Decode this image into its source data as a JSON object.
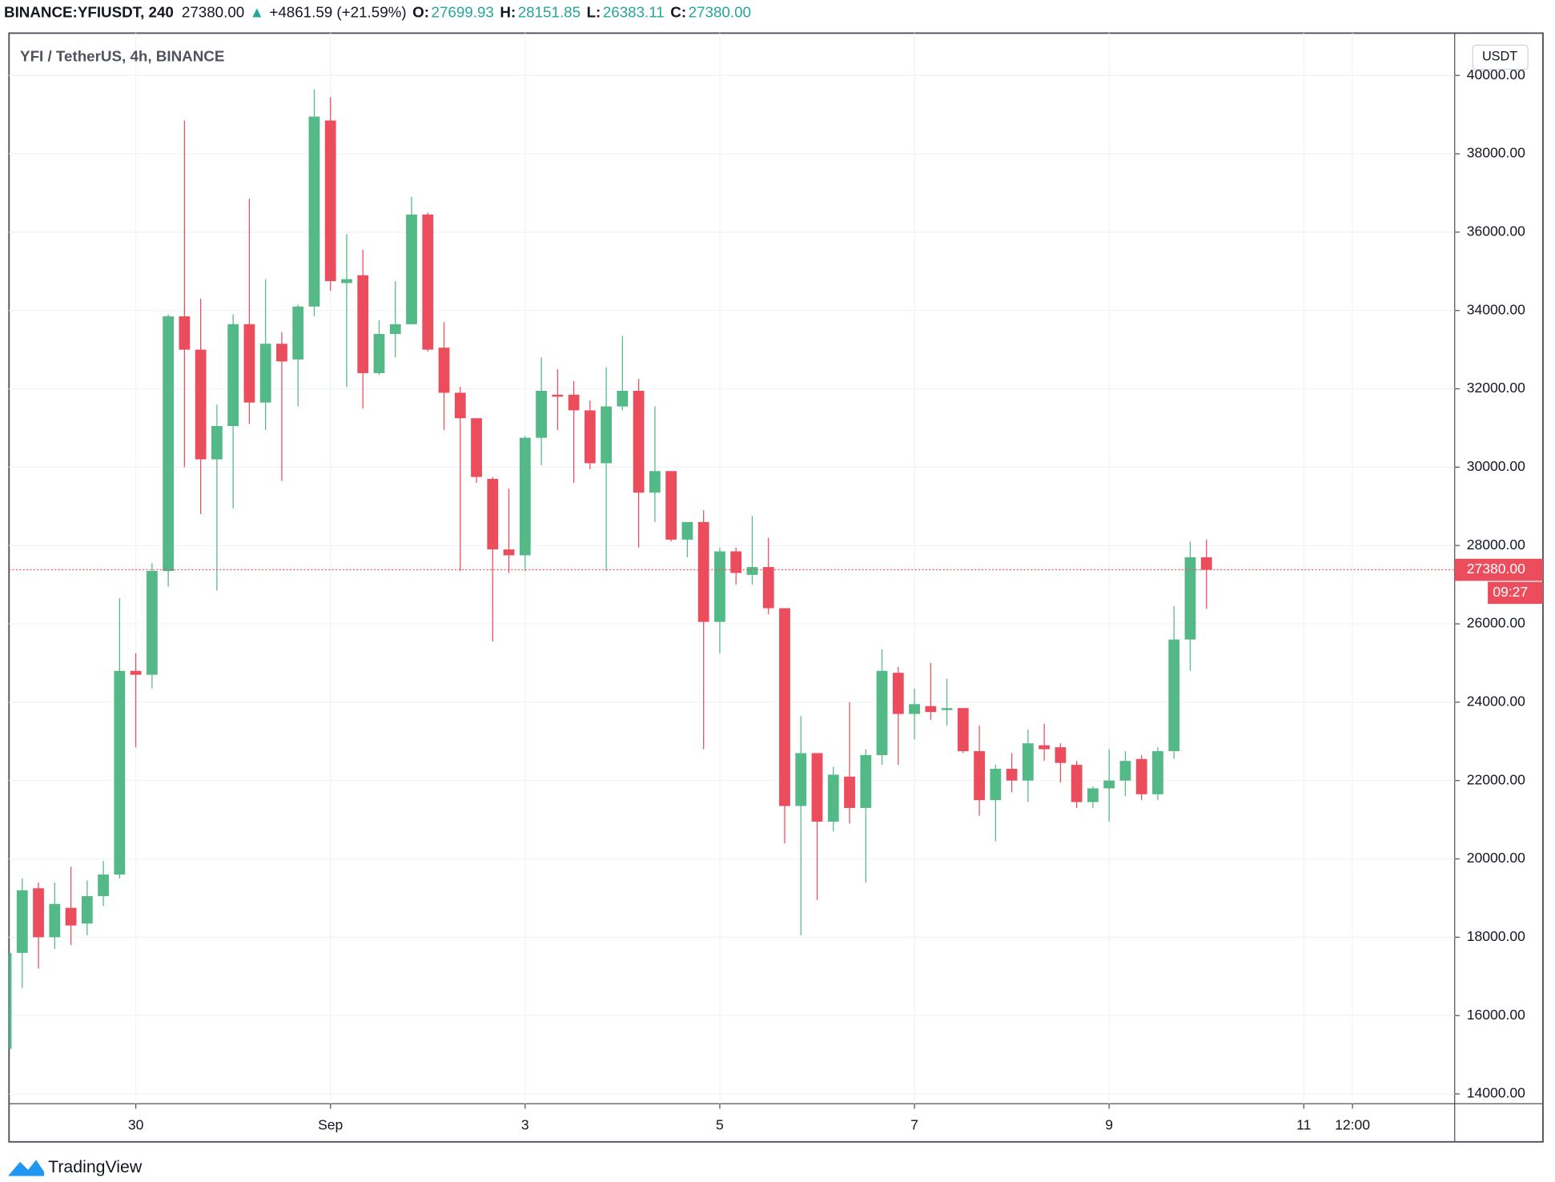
{
  "header": {
    "symbol": "BINANCE:YFIUSDT, 240",
    "last": "27380.00",
    "arrow": "▲",
    "change": "+4861.59 (+21.59%)",
    "ohlc": [
      {
        "label": "O:",
        "value": "27699.93"
      },
      {
        "label": "H:",
        "value": "28151.85"
      },
      {
        "label": "L:",
        "value": "26383.11"
      },
      {
        "label": "C:",
        "value": "27380.00"
      }
    ]
  },
  "brand": "TradingView",
  "chart_data": {
    "type": "candlestick",
    "title": "YFI / TetherUS, 4h, BINANCE",
    "currency": "USDT",
    "up_color": "#53b987",
    "down_color": "#eb4d5c",
    "grid": true,
    "categories": [
      null,
      null,
      null,
      null,
      null,
      null,
      null,
      null,
      "30",
      null,
      null,
      null,
      null,
      null,
      null,
      null,
      null,
      null,
      null,
      null,
      "Sep",
      null,
      null,
      null,
      null,
      null,
      null,
      null,
      null,
      null,
      null,
      null,
      "3",
      null,
      null,
      null,
      null,
      null,
      null,
      null,
      null,
      null,
      null,
      null,
      "5",
      null,
      null,
      null,
      null,
      null,
      null,
      null,
      null,
      null,
      null,
      null,
      "7",
      null,
      null,
      null,
      null,
      null,
      null,
      null,
      null,
      null,
      null,
      null,
      "9",
      null,
      null,
      null,
      null,
      null,
      null,
      null,
      null,
      null,
      null,
      null,
      "11",
      null,
      null,
      "12:00",
      null,
      null,
      null,
      null,
      null,
      null
    ],
    "open": [
      15150,
      17600,
      19250,
      18000,
      18750,
      18350,
      19050,
      19600,
      24800,
      24700,
      27350,
      33850,
      33000,
      30200,
      31050,
      33650,
      31650,
      33150,
      32750,
      34100,
      38850,
      34700,
      34900,
      32400,
      33400,
      33650,
      36450,
      33050,
      31900,
      31250,
      29700,
      27900,
      27750,
      30750,
      31850,
      31850,
      31450,
      30100,
      31550,
      31950,
      29350,
      29900,
      28150,
      28600,
      26050,
      27850,
      27250,
      27450,
      26400,
      21350,
      22700,
      20950,
      22100,
      21300,
      22650,
      24750,
      23700,
      23900,
      23800,
      23850,
      22750,
      21500,
      22300,
      22000,
      22900,
      22850,
      22400,
      21450,
      21800,
      22000,
      22550,
      21650,
      22750,
      25600,
      27699.93,
      null,
      null,
      null,
      null,
      null,
      null,
      null,
      null,
      null,
      null,
      null,
      null,
      null,
      null,
      null
    ],
    "high": [
      17650,
      19500,
      19400,
      19400,
      19800,
      19450,
      19950,
      26650,
      25250,
      27550,
      33900,
      38850,
      34300,
      31600,
      33900,
      36850,
      34800,
      33450,
      34150,
      39650,
      39450,
      35950,
      35550,
      33750,
      34750,
      36900,
      36500,
      33700,
      32050,
      31250,
      29750,
      29450,
      30800,
      32800,
      32500,
      32200,
      31700,
      32550,
      33350,
      32250,
      31550,
      29900,
      28600,
      28900,
      27950,
      27950,
      28750,
      28200,
      26400,
      23650,
      22700,
      22350,
      24000,
      22800,
      25350,
      24900,
      24350,
      25000,
      24600,
      23850,
      23400,
      22400,
      22700,
      23300,
      23450,
      22950,
      22500,
      21850,
      22800,
      22750,
      22650,
      22850,
      26450,
      28100,
      28151.85,
      null,
      null,
      null,
      null,
      null,
      null,
      null,
      null,
      null,
      null,
      null,
      null,
      null,
      null,
      null
    ],
    "low": [
      15100,
      16700,
      17200,
      17700,
      17800,
      18050,
      18800,
      19500,
      22850,
      24350,
      26950,
      30000,
      28800,
      26850,
      28950,
      31100,
      30950,
      29650,
      31550,
      33850,
      34500,
      32050,
      31500,
      32350,
      32800,
      33650,
      32950,
      30950,
      27350,
      29600,
      25550,
      27300,
      27350,
      30050,
      30950,
      29600,
      29950,
      27350,
      31450,
      27950,
      28600,
      28100,
      27700,
      22800,
      25250,
      27000,
      27000,
      26250,
      20400,
      18050,
      18950,
      20700,
      20900,
      19400,
      22400,
      22400,
      23050,
      23550,
      23400,
      22700,
      21100,
      20450,
      21700,
      21450,
      22500,
      21950,
      21300,
      21300,
      20950,
      21600,
      21500,
      21500,
      22550,
      24800,
      26383.11,
      null,
      null,
      null,
      null,
      null,
      null,
      null,
      null,
      null,
      null,
      null,
      null,
      null,
      null,
      null
    ],
    "close": [
      17600,
      19200,
      18000,
      18850,
      18300,
      19050,
      19600,
      24800,
      24700,
      27350,
      33850,
      33000,
      30200,
      31050,
      33650,
      31650,
      33150,
      32700,
      34100,
      38950,
      34750,
      34800,
      32400,
      33400,
      33650,
      36450,
      33000,
      31900,
      31250,
      29750,
      27900,
      27750,
      30750,
      31950,
      31800,
      31450,
      30100,
      31550,
      31950,
      29350,
      29900,
      28150,
      28600,
      26050,
      27850,
      27300,
      27450,
      26400,
      21350,
      22700,
      20950,
      22150,
      21300,
      22650,
      24800,
      23700,
      23950,
      23750,
      23850,
      22750,
      21500,
      22300,
      22000,
      22950,
      22800,
      22450,
      21450,
      21800,
      22000,
      22500,
      21650,
      22750,
      25600,
      27700,
      27380,
      null,
      null,
      null,
      null,
      null,
      null,
      null,
      null,
      null,
      null,
      null,
      null,
      null,
      null,
      null
    ],
    "ylim": [
      13750,
      41080
    ],
    "yticks": [
      {
        "value": 14000,
        "label": "14000.00"
      },
      {
        "value": 16000,
        "label": "16000.00"
      },
      {
        "value": 18000,
        "label": "18000.00"
      },
      {
        "value": 20000,
        "label": "20000.00"
      },
      {
        "value": 22000,
        "label": "22000.00"
      },
      {
        "value": 24000,
        "label": "24000.00"
      },
      {
        "value": 26000,
        "label": "26000.00"
      },
      {
        "value": 28000,
        "label": "28000.00"
      },
      {
        "value": 30000,
        "label": "30000.00"
      },
      {
        "value": 32000,
        "label": "32000.00"
      },
      {
        "value": 34000,
        "label": "34000.00"
      },
      {
        "value": 36000,
        "label": "36000.00"
      },
      {
        "value": 38000,
        "label": "38000.00"
      },
      {
        "value": 40000,
        "label": "40000.00"
      }
    ],
    "last_price": {
      "value": 27380,
      "label": "27380.00"
    },
    "countdown": "09:27"
  }
}
